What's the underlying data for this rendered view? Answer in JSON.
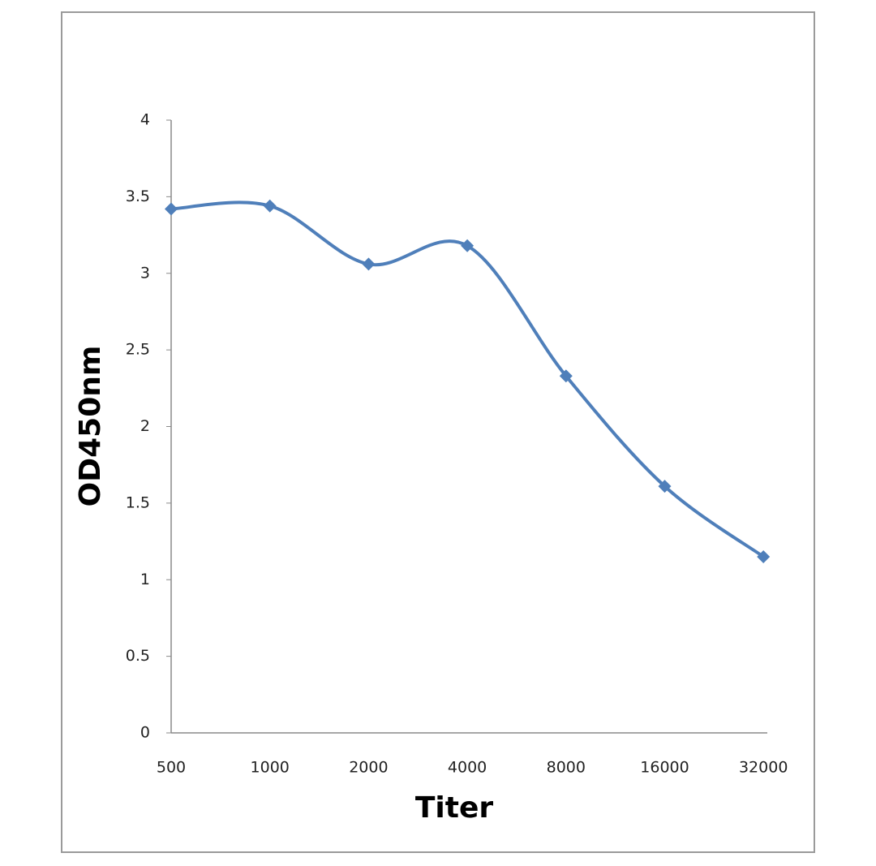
{
  "chart_data": {
    "type": "line",
    "categories": [
      "500",
      "1000",
      "2000",
      "4000",
      "8000",
      "16000",
      "32000"
    ],
    "series": [
      {
        "name": "OD450nm",
        "color": "#4f7fba",
        "values": [
          3.42,
          3.44,
          3.06,
          3.18,
          2.33,
          1.61,
          1.15
        ]
      }
    ],
    "x_label": "Titer",
    "y_label": "OD450nm",
    "ylim": [
      0,
      4
    ],
    "yticks": [
      0,
      0.5,
      1,
      1.5,
      2,
      2.5,
      3,
      3.5,
      4
    ],
    "smooth": true,
    "grid": false
  }
}
